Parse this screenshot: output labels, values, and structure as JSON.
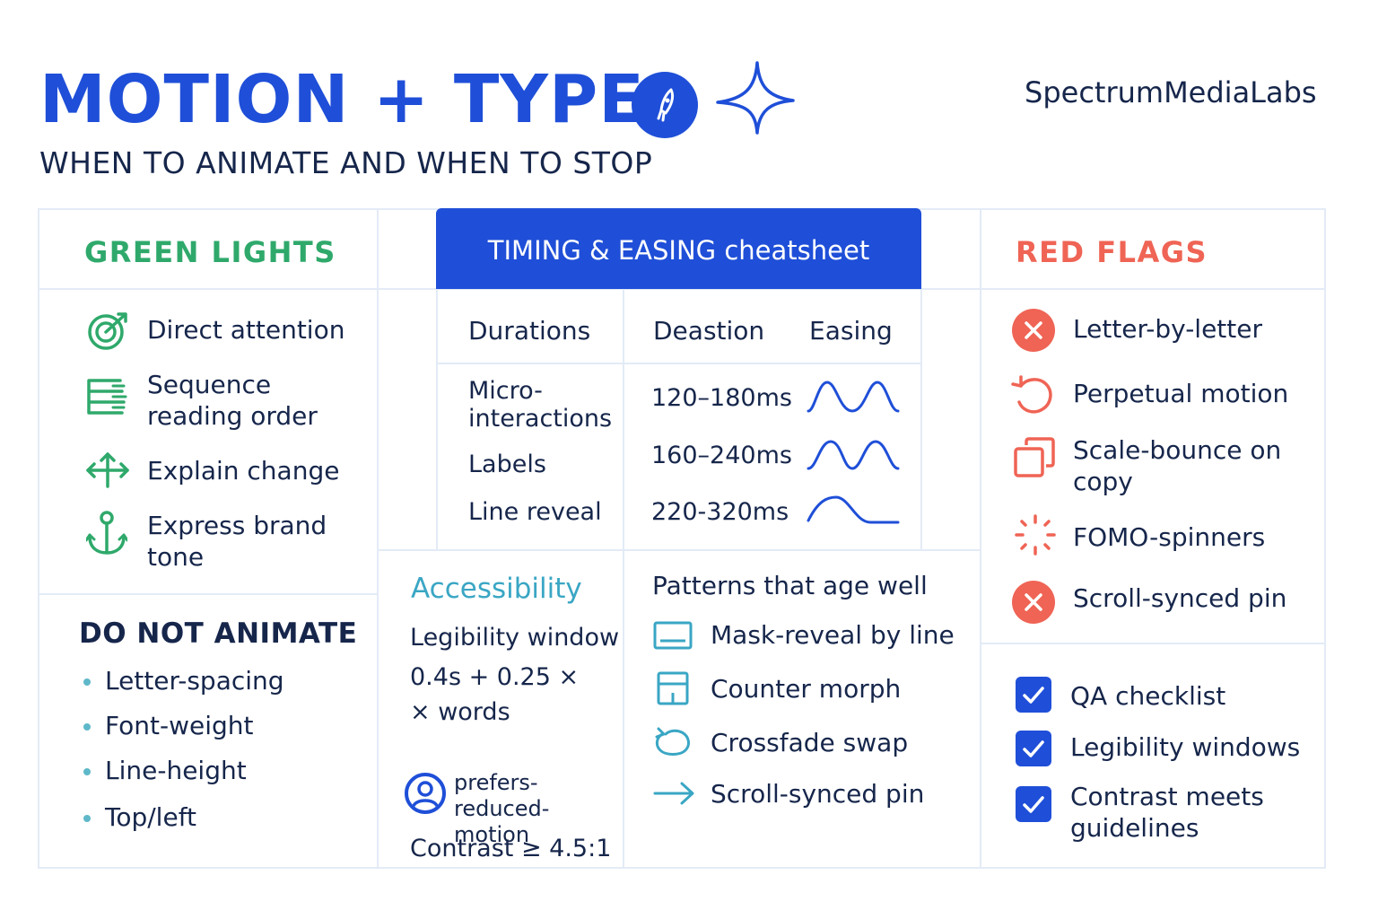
{
  "header": {
    "title": "MOTION + TYPE",
    "subtitle": "WHEN TO ANIMATE AND WHEN TO STOP",
    "brand": "SpectrumMediaLabs"
  },
  "green_lights": {
    "heading": "GREEN LIGHTS",
    "items": [
      {
        "icon": "target-icon",
        "label": "Direct attention"
      },
      {
        "icon": "stack-icon",
        "label": "Sequence reading order"
      },
      {
        "icon": "move-arrows-icon",
        "label": "Explain change"
      },
      {
        "icon": "anchor-icon",
        "label": "Express brand tone"
      }
    ]
  },
  "do_not_animate": {
    "heading": "DO NOT ANIMATE",
    "items": [
      "Letter-spacing",
      "Font-weight",
      "Line-height",
      "Top/left"
    ]
  },
  "timing": {
    "heading": "TIMING & EASING cheatsheet",
    "columns": [
      "Durations",
      "Deastion",
      "Easing"
    ],
    "rows": [
      {
        "label": "Micro-interactions",
        "duration": "120–180ms",
        "easing_icon": "double-wave-icon"
      },
      {
        "label": "Labels",
        "duration": "160–240ms",
        "easing_icon": "double-wave-icon"
      },
      {
        "label": "Line reveal",
        "duration": "220-320ms",
        "easing_icon": "ease-out-curve-icon"
      }
    ]
  },
  "accessibility": {
    "heading": "Accessibility",
    "legibility_label": "Legibility window",
    "formula_line1": "0.4s + 0.25 ×",
    "formula_line2": "× words",
    "reduced_motion": "prefers-reduced-motion",
    "contrast": "Contrast ≥ 4.5:1"
  },
  "patterns": {
    "heading": "Patterns that age well",
    "items": [
      {
        "icon": "mask-reveal-icon",
        "label": "Mask-reveal by line"
      },
      {
        "icon": "counter-morph-icon",
        "label": "Counter morph"
      },
      {
        "icon": "crossfade-icon",
        "label": "Crossfade swap"
      },
      {
        "icon": "arrow-right-icon",
        "label": "Scroll-synced pin"
      }
    ]
  },
  "red_flags": {
    "heading": "RED FLAGS",
    "items": [
      {
        "icon": "x-circle-icon",
        "label": "Letter-by-letter"
      },
      {
        "icon": "rotate-icon",
        "label": "Perpetual motion"
      },
      {
        "icon": "copy-icon",
        "label": "Scale-bounce on copy"
      },
      {
        "icon": "spinner-icon",
        "label": "FOMO-spinners"
      },
      {
        "icon": "x-circle-icon",
        "label": "Scroll-synced pin"
      }
    ]
  },
  "qa": {
    "items": [
      "QA checklist",
      "Legibility windows",
      "Contrast meets guidelines"
    ]
  },
  "colors": {
    "blue": "#1f4fd8",
    "navy": "#16264b",
    "green": "#2fa96b",
    "red": "#ef6455",
    "teal": "#3aa6c4"
  }
}
